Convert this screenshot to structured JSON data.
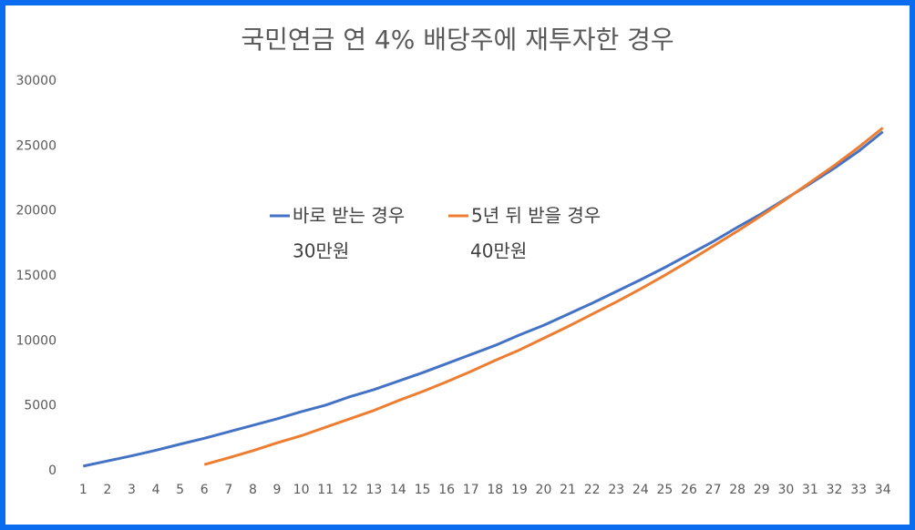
{
  "chart_data": {
    "type": "line",
    "title": "국민연금 연 4% 배당주에 재투자한 경우",
    "categories": [
      "1",
      "2",
      "3",
      "4",
      "5",
      "6",
      "7",
      "8",
      "9",
      "10",
      "11",
      "12",
      "13",
      "14",
      "15",
      "16",
      "17",
      "18",
      "19",
      "20",
      "21",
      "22",
      "23",
      "24",
      "25",
      "26",
      "27",
      "28",
      "29",
      "30",
      "31",
      "32",
      "33",
      "34"
    ],
    "series": [
      {
        "name": "바로 받는 경우",
        "color": "#4472c4",
        "values": [
          360,
          760,
          1150,
          1580,
          2050,
          2500,
          3000,
          3500,
          4000,
          4550,
          5050,
          5700,
          6250,
          6900,
          7550,
          8250,
          8950,
          9650,
          10450,
          11200,
          12050,
          12900,
          13800,
          14700,
          15650,
          16650,
          17650,
          18750,
          19800,
          20950,
          22100,
          23300,
          24600,
          26100
        ]
      },
      {
        "name": "5년 뒤 받을 경우",
        "color": "#ed7d31",
        "values": [
          null,
          null,
          null,
          null,
          null,
          480,
          1000,
          1550,
          2150,
          2700,
          3350,
          4000,
          4650,
          5400,
          6100,
          6850,
          7650,
          8500,
          9300,
          10200,
          11100,
          12050,
          13000,
          14000,
          15050,
          16150,
          17300,
          18450,
          19650,
          20900,
          22200,
          23500,
          24900,
          26400
        ]
      }
    ],
    "annotations": [
      "30만원",
      "40만원"
    ],
    "ylim": [
      0,
      30000
    ],
    "yticks": [
      0,
      5000,
      10000,
      15000,
      20000,
      25000,
      30000
    ],
    "grid": false,
    "legend": "center"
  }
}
